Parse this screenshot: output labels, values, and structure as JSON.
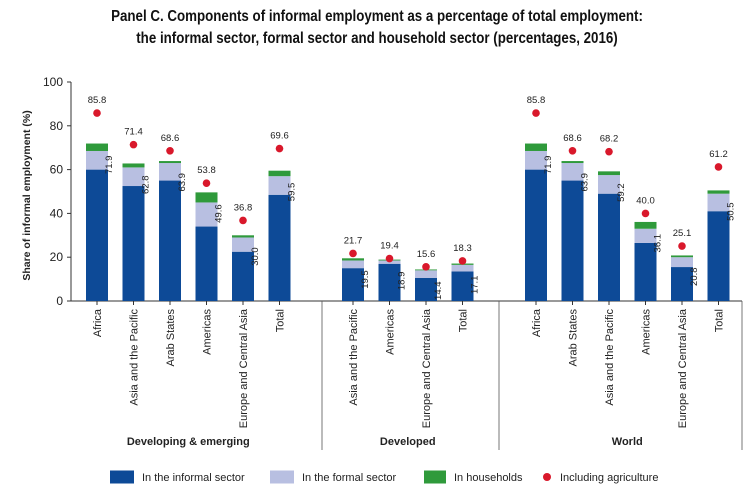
{
  "chart_data": {
    "type": "bar",
    "title_line1": "Panel C.  Components of informal employment as a percentage of total employment:",
    "title_line2": "the informal sector, formal sector and household sector (percentages, 2016)",
    "ylabel": "Share of informal employment (%)",
    "ylim": [
      0,
      100
    ],
    "yticks": [
      0,
      20,
      40,
      60,
      80,
      100
    ],
    "stacked": true,
    "grid": false,
    "legend_position": "bottom",
    "colors": {
      "informal": "#0d4a97",
      "formal": "#b8bfe1",
      "households": "#2f9a3b",
      "agriculture": "#d9182b"
    },
    "series_names": {
      "informal": "In the informal sector",
      "formal": "In the formal sector",
      "households": "In households",
      "agriculture": "Including agriculture"
    },
    "groups": [
      {
        "name": "Developing & emerging",
        "bars": [
          {
            "category": "Africa",
            "informal": 60.0,
            "formal": 8.5,
            "households": 3.4,
            "total": 71.9,
            "total_label": "71.9",
            "agriculture": 85.8,
            "agriculture_label": "85.8"
          },
          {
            "category": "Asia and the Pacific",
            "informal": 52.5,
            "formal": 8.5,
            "households": 1.8,
            "total": 62.8,
            "total_label": "62.8",
            "agriculture": 71.4,
            "agriculture_label": "71.4"
          },
          {
            "category": "Arab States",
            "informal": 55.0,
            "formal": 8.0,
            "households": 0.9,
            "total": 63.9,
            "total_label": "63.9",
            "agriculture": 68.6,
            "agriculture_label": "68.6"
          },
          {
            "category": "Americas",
            "informal": 34.0,
            "formal": 11.0,
            "households": 4.6,
            "total": 49.6,
            "total_label": "49.6",
            "agriculture": 53.8,
            "agriculture_label": "53.8"
          },
          {
            "category": "Europe and Central Asia",
            "informal": 22.5,
            "formal": 6.5,
            "households": 1.0,
            "total": 30.0,
            "total_label": "30.0",
            "agriculture": 36.8,
            "agriculture_label": "36.8"
          },
          {
            "category": "Total",
            "informal": 48.5,
            "formal": 8.5,
            "households": 2.5,
            "total": 59.5,
            "total_label": "59.5",
            "agriculture": 69.6,
            "agriculture_label": "69.6"
          }
        ]
      },
      {
        "name": "Developed",
        "bars": [
          {
            "category": "Asia and the Pacific",
            "informal": 15.0,
            "formal": 3.5,
            "households": 1.0,
            "total": 19.5,
            "total_label": "19.5",
            "agriculture": 21.7,
            "agriculture_label": "21.7"
          },
          {
            "category": "Americas",
            "informal": 17.0,
            "formal": 1.5,
            "households": 0.4,
            "total": 18.9,
            "total_label": "18.9",
            "agriculture": 19.4,
            "agriculture_label": "19.4"
          },
          {
            "category": "Europe and Central Asia",
            "informal": 10.5,
            "formal": 3.5,
            "households": 0.4,
            "total": 14.4,
            "total_label": "14.4",
            "agriculture": 15.6,
            "agriculture_label": "15.6"
          },
          {
            "category": "Total",
            "informal": 13.5,
            "formal": 3.0,
            "households": 0.6,
            "total": 17.1,
            "total_label": "17.1",
            "agriculture": 18.3,
            "agriculture_label": "18.3"
          }
        ]
      },
      {
        "name": "World",
        "bars": [
          {
            "category": "Africa",
            "informal": 60.0,
            "formal": 8.5,
            "households": 3.4,
            "total": 71.9,
            "total_label": "71.9",
            "agriculture": 85.8,
            "agriculture_label": "85.8"
          },
          {
            "category": "Arab States",
            "informal": 55.0,
            "formal": 8.0,
            "households": 0.9,
            "total": 63.9,
            "total_label": "63.9",
            "agriculture": 68.6,
            "agriculture_label": "68.6"
          },
          {
            "category": "Asia and the Pacific",
            "informal": 49.0,
            "formal": 8.5,
            "households": 1.7,
            "total": 59.2,
            "total_label": "59.2",
            "agriculture": 68.2,
            "agriculture_label": "68.2"
          },
          {
            "category": "Americas",
            "informal": 26.5,
            "formal": 6.5,
            "households": 3.1,
            "total": 36.1,
            "total_label": "36.1",
            "agriculture": 40.0,
            "agriculture_label": "40.0"
          },
          {
            "category": "Europe and Central Asia",
            "informal": 15.5,
            "formal": 4.5,
            "households": 0.8,
            "total": 20.8,
            "total_label": "20.8",
            "agriculture": 25.1,
            "agriculture_label": "25.1"
          },
          {
            "category": "Total",
            "informal": 41.0,
            "formal": 8.0,
            "households": 1.5,
            "total": 50.5,
            "total_label": "50.5",
            "agriculture": 61.2,
            "agriculture_label": "61.2"
          }
        ]
      }
    ]
  }
}
